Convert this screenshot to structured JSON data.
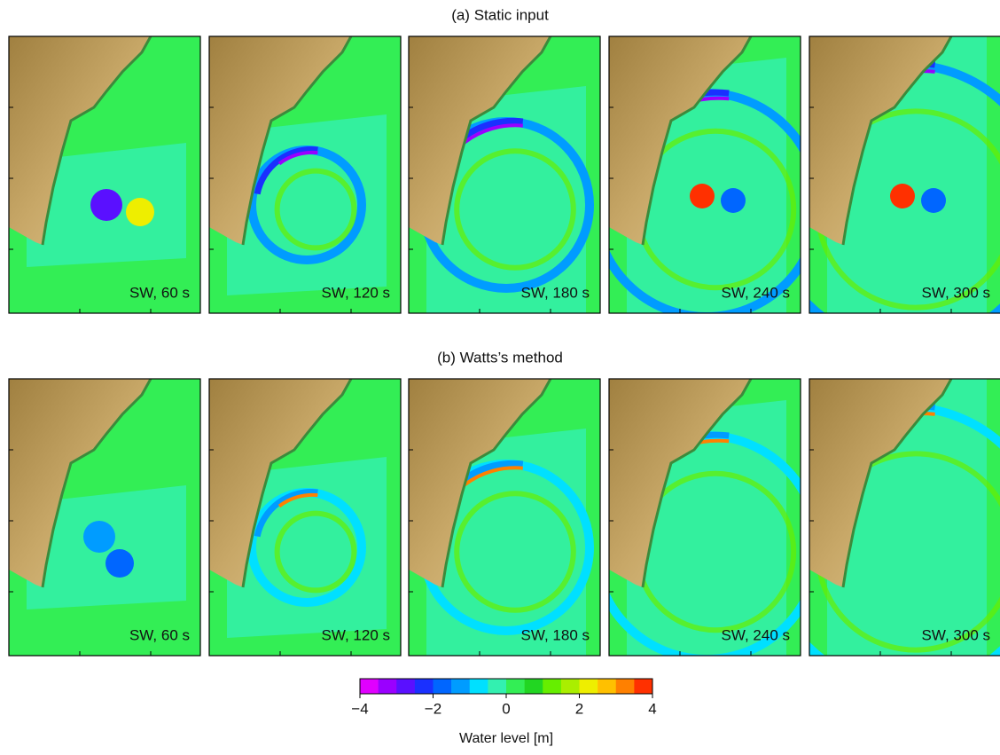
{
  "rows": [
    {
      "title": "(a) Static input",
      "panels": [
        "SW, 60 s",
        "SW, 120 s",
        "SW, 180 s",
        "SW, 240 s",
        "SW, 300 s"
      ]
    },
    {
      "title": "(b) Watts’s method",
      "panels": [
        "SW, 60 s",
        "SW, 120 s",
        "SW, 180 s",
        "SW, 240 s",
        "SW, 300 s"
      ]
    }
  ],
  "colorbar": {
    "lim": [
      -4,
      4
    ],
    "colors": [
      "#e000ff",
      "#9a00ff",
      "#5a10ff",
      "#1a30ff",
      "#0066ff",
      "#009cff",
      "#00e0ff",
      "#33f0b0",
      "#33ee55",
      "#22d622",
      "#66ee00",
      "#aaee00",
      "#eeee00",
      "#ffc000",
      "#ff8000",
      "#ff3000"
    ],
    "ticks": [
      {
        "value": -4,
        "label": "−4"
      },
      {
        "value": -2,
        "label": "−2"
      },
      0,
      2,
      4
    ],
    "label": "Water level [m]"
  }
}
